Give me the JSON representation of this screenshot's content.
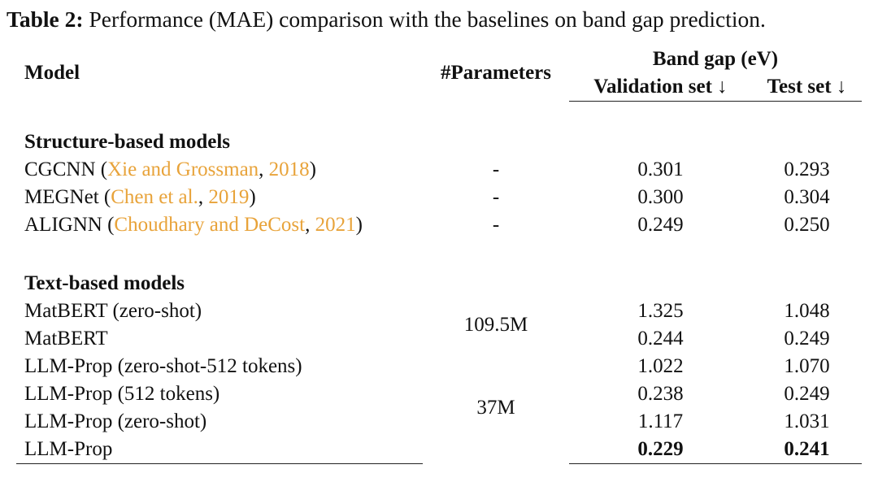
{
  "caption": {
    "label": "Table 2:",
    "text": "Performance (MAE) comparison with the baselines on band gap prediction."
  },
  "table": {
    "header": {
      "model": "Model",
      "parameters": "#Parameters",
      "group": "Band gap (eV)",
      "validation": "Validation set ↓",
      "test": "Test set ↓"
    },
    "sections": [
      {
        "title": "Structure-based models",
        "rows": [
          {
            "model": [
              {
                "text": "CGCNN ("
              },
              {
                "text": "Xie and Grossman",
                "cite": true
              },
              {
                "text": ", "
              },
              {
                "text": "2018",
                "cite": true
              },
              {
                "text": ")"
              }
            ],
            "parameters": "-",
            "validation": "0.301",
            "test": "0.293"
          },
          {
            "model": [
              {
                "text": "MEGNet ("
              },
              {
                "text": "Chen et al.",
                "cite": true
              },
              {
                "text": ", "
              },
              {
                "text": "2019",
                "cite": true
              },
              {
                "text": ")"
              }
            ],
            "parameters": "-",
            "validation": "0.300",
            "test": "0.304"
          },
          {
            "model": [
              {
                "text": "ALIGNN ("
              },
              {
                "text": "Choudhary and DeCost",
                "cite": true
              },
              {
                "text": ", "
              },
              {
                "text": "2021",
                "cite": true
              },
              {
                "text": ")"
              }
            ],
            "parameters": "-",
            "validation": "0.249",
            "test": "0.250"
          }
        ]
      },
      {
        "title": "Text-based models",
        "rows": [
          {
            "model": "MatBERT (zero-shot)",
            "parameters": "109.5M",
            "validation": "1.325",
            "test": "1.048"
          },
          {
            "model": "MatBERT",
            "validation": "0.244",
            "test": "0.249"
          },
          {
            "model": "LLM-Prop (zero-shot-512 tokens)",
            "parameters": "37M",
            "validation": "1.022",
            "test": "1.070"
          },
          {
            "model": "LLM-Prop (512 tokens)",
            "validation": "0.238",
            "test": "0.249"
          },
          {
            "model": "LLM-Prop (zero-shot)",
            "validation": "1.117",
            "test": "1.031"
          },
          {
            "model": "LLM-Prop",
            "validation": "0.229",
            "test": "0.241",
            "best": true
          }
        ]
      }
    ]
  }
}
